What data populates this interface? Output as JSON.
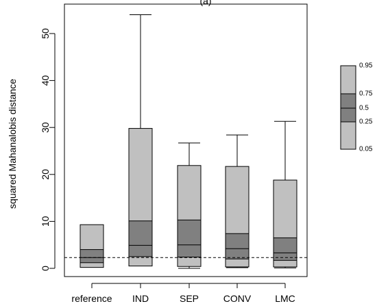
{
  "chart_data": {
    "type": "box",
    "title_fragment": "(a)",
    "xlabel": "",
    "ylabel": "squared Mahanalobis distance",
    "ylim": [
      -2,
      57
    ],
    "yticks": [
      0,
      10,
      20,
      30,
      40,
      50
    ],
    "reference_line": 2.3,
    "categories": [
      "reference",
      "IND",
      "SEP",
      "CONV",
      "LMC"
    ],
    "boxes": [
      {
        "name": "reference",
        "q05": 0.2,
        "q25": 1.2,
        "q50": 2.3,
        "q75": 4.0,
        "q95": 9.3,
        "whisker_low": null,
        "whisker_high": null
      },
      {
        "name": "IND",
        "q05": 0.5,
        "q25": 2.5,
        "q50": 4.9,
        "q75": 10.1,
        "q95": 29.8,
        "whisker_low": null,
        "whisker_high": 54.0
      },
      {
        "name": "SEP",
        "q05": 0.4,
        "q25": 2.4,
        "q50": 5.0,
        "q75": 10.3,
        "q95": 21.9,
        "whisker_low": 0.0,
        "whisker_high": 26.7
      },
      {
        "name": "CONV",
        "q05": 0.3,
        "q25": 2.0,
        "q50": 4.2,
        "q75": 7.4,
        "q95": 21.7,
        "whisker_low": 0.15,
        "whisker_high": 28.4
      },
      {
        "name": "LMC",
        "q05": 0.3,
        "q25": 1.7,
        "q50": 3.3,
        "q75": 6.5,
        "q95": 18.8,
        "whisker_low": 0.1,
        "whisker_high": 31.3
      }
    ],
    "legend": {
      "position": "right",
      "labels": [
        "0.95",
        "0.75",
        "0.5",
        "0.25",
        "0.05"
      ],
      "levels": [
        0.95,
        0.75,
        0.5,
        0.25,
        0.05
      ]
    },
    "colors": {
      "outer": "#c0c0c0",
      "inner": "#808080",
      "line": "#000000"
    }
  }
}
